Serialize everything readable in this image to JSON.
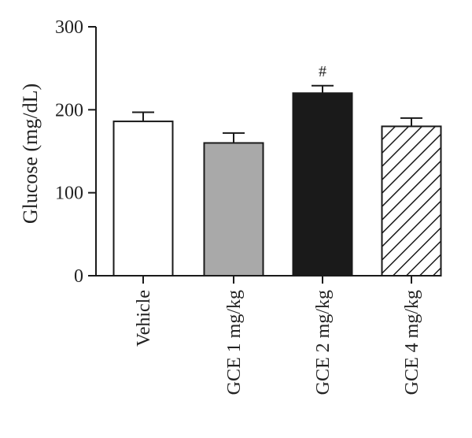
{
  "chart_data": {
    "type": "bar",
    "categories": [
      "Vehicle",
      "GCE 1 mg/kg",
      "GCE 2 mg/kg",
      "GCE 4 mg/kg"
    ],
    "values": [
      186,
      160,
      220,
      180
    ],
    "errors": [
      11,
      12,
      9,
      10
    ],
    "fills": [
      "white",
      "gray",
      "black",
      "hatched"
    ],
    "annotations": [
      "",
      "",
      "#",
      ""
    ],
    "ylabel": "Glucose (mg/dL)",
    "xlabel": "",
    "title": "",
    "ylim": [
      0,
      300
    ],
    "yticks": [
      0,
      100,
      200,
      300
    ],
    "grid": false,
    "colors": {
      "white": "#ffffff",
      "gray": "#a9a9a9",
      "black": "#1a1a1a",
      "stroke": "#1a1a1a"
    }
  }
}
